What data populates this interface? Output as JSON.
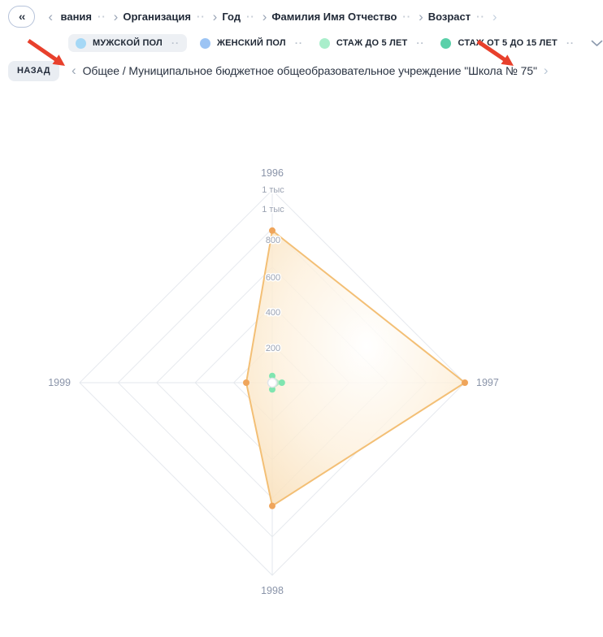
{
  "icons": {
    "collapse": "‹‹",
    "chevron_left": "‹",
    "chevron_right": "›",
    "more": "··"
  },
  "breadcrumbs": {
    "items": [
      {
        "label": "вания",
        "partial": true
      },
      {
        "label": "Организация"
      },
      {
        "label": "Год"
      },
      {
        "label": "Фамилия Имя Отчество"
      },
      {
        "label": "Возраст"
      }
    ]
  },
  "legend": {
    "items": [
      {
        "label": "МУЖСКОЙ ПОЛ",
        "color": "#a5d8f6",
        "selected": true
      },
      {
        "label": "ЖЕНСКИЙ ПОЛ",
        "color": "#9cc4f4",
        "selected": false
      },
      {
        "label": "СТАЖ ДО 5 ЛЕТ",
        "color": "#a9eecb",
        "selected": false
      },
      {
        "label": "СТАЖ ОТ 5 ДО 15 ЛЕТ",
        "color": "#5ad0a9",
        "selected": false
      }
    ]
  },
  "nav_row": {
    "back_label": "НАЗАД",
    "path": "Общее / Муниципальное бюджетное общеобразовательное учреждение \"Школа № 75\""
  },
  "annotations": {
    "arrow_color": "#e8402c"
  },
  "chart_data": {
    "type": "radar",
    "categories": [
      "1996",
      "1997",
      "1998",
      "1999"
    ],
    "max": 1000,
    "radial_tick_labels_outer_to_inner": [
      "1 тыс",
      "1 тыс",
      "800",
      "600",
      "400",
      "200"
    ],
    "grid": true,
    "series": [
      {
        "name": "orange-series",
        "color": "#f3bf75",
        "dot_color": "#efa55b",
        "values": [
          790,
          1000,
          640,
          135
        ]
      },
      {
        "name": "green-series",
        "color": "#7fe5b0",
        "dot_color": "#7fe5b0",
        "values": [
          35,
          50,
          35,
          0
        ]
      }
    ],
    "center_point_color": "#ffffff"
  }
}
